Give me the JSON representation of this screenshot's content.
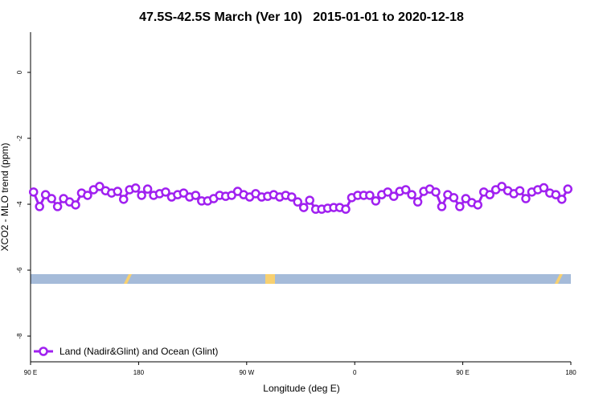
{
  "chart_data": {
    "type": "line",
    "title": "47.5S-42.5S March (Ver 10)   2015-01-01 to 2020-12-18",
    "xlabel": "Longitude (deg E)",
    "ylabel": "XCO2 - MLO trend (ppm)",
    "x": [
      92.5,
      97.5,
      102.5,
      107.5,
      112.5,
      117.5,
      122.5,
      127.5,
      132.5,
      137.5,
      142.5,
      147.5,
      152.5,
      157.5,
      162.5,
      167.5,
      172.5,
      177.5,
      182.5,
      187.5,
      192.5,
      197.5,
      202.5,
      207.5,
      212.5,
      217.5,
      222.5,
      227.5,
      232.5,
      237.5,
      242.5,
      247.5,
      252.5,
      257.5,
      262.5,
      267.5,
      272.5,
      277.5,
      282.5,
      287.5,
      292.5,
      297.5,
      302.5,
      307.5,
      312.5,
      317.5,
      322.5,
      327.5,
      332.5,
      337.5,
      342.5,
      347.5,
      352.5,
      357.5,
      362.5,
      367.5,
      372.5,
      377.5,
      382.5,
      387.5,
      392.5,
      397.5,
      402.5,
      407.5,
      412.5,
      417.5,
      422.5,
      427.5,
      432.5,
      437.5,
      442.5,
      447.5,
      452.5,
      457.5,
      462.5,
      467.5,
      472.5,
      477.5,
      482.5,
      487.5,
      492.5,
      497.5,
      502.5,
      507.5,
      512.5,
      517.5,
      522.5,
      527.5,
      532.5,
      537.5
    ],
    "series": [
      {
        "name": "Land (Nadir&Glint) and Ocean (Glint)",
        "color": "#a020f0",
        "values": [
          -3.63,
          -4.07,
          -3.71,
          -3.83,
          -4.07,
          -3.83,
          -3.93,
          -4.02,
          -3.66,
          -3.73,
          -3.56,
          -3.46,
          -3.59,
          -3.66,
          -3.61,
          -3.85,
          -3.56,
          -3.51,
          -3.73,
          -3.54,
          -3.73,
          -3.68,
          -3.63,
          -3.78,
          -3.71,
          -3.66,
          -3.78,
          -3.73,
          -3.9,
          -3.9,
          -3.83,
          -3.73,
          -3.76,
          -3.73,
          -3.61,
          -3.71,
          -3.78,
          -3.68,
          -3.78,
          -3.76,
          -3.71,
          -3.78,
          -3.73,
          -3.78,
          -3.93,
          -4.1,
          -3.88,
          -4.15,
          -4.15,
          -4.12,
          -4.1,
          -4.1,
          -4.15,
          -3.8,
          -3.73,
          -3.73,
          -3.73,
          -3.9,
          -3.71,
          -3.63,
          -3.76,
          -3.61,
          -3.56,
          -3.71,
          -3.93,
          -3.61,
          -3.54,
          -3.63,
          -4.07,
          -3.71,
          -3.8,
          -4.07,
          -3.83,
          -3.95,
          -4.02,
          -3.63,
          -3.71,
          -3.56,
          -3.46,
          -3.59,
          -3.68,
          -3.59,
          -3.83,
          -3.63,
          -3.56,
          -3.5,
          -3.66,
          -3.71,
          -3.85,
          -3.54
        ]
      }
    ],
    "xlim": [
      90,
      540
    ],
    "xticks": [
      {
        "value": 90,
        "label": "90 E"
      },
      180,
      {
        "value": 270,
        "label": "90 W"
      },
      {
        "value": 360,
        "label": "0"
      },
      {
        "value": 450,
        "label": "90 E"
      },
      {
        "value": 540,
        "label": "180"
      }
    ],
    "ylim": [
      -8.78,
      1.22
    ],
    "yticks": [
      0,
      -2,
      -4,
      -6,
      -8
    ],
    "legend": "lower left"
  }
}
